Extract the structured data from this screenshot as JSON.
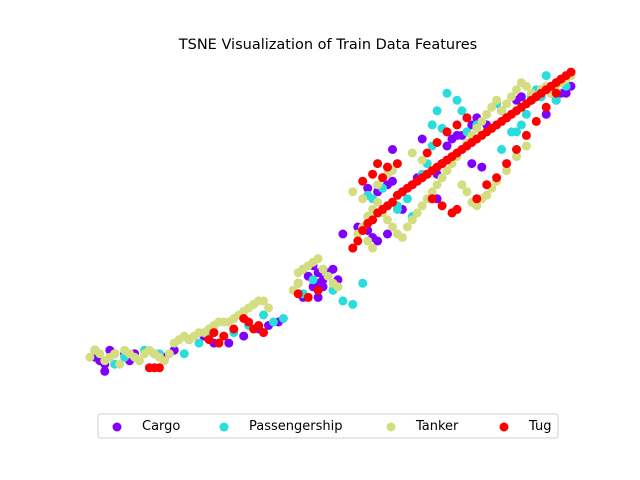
{
  "chart_data": {
    "type": "scatter",
    "title": "TSNE Visualization of Train Data Features",
    "xlabel": "",
    "ylabel": "",
    "axes_visible": false,
    "grid": false,
    "legend_placement": "bottom-center",
    "legend_columns": 4,
    "xlim": [
      0,
      100
    ],
    "ylim": [
      0,
      100
    ],
    "series": [
      {
        "name": "Cargo",
        "color": "#8000ff",
        "points": [
          [
            3,
            17
          ],
          [
            5,
            13
          ],
          [
            4,
            14
          ],
          [
            6,
            17
          ],
          [
            5,
            11
          ],
          [
            3,
            15
          ],
          [
            7,
            16
          ],
          [
            9,
            16
          ],
          [
            10,
            14
          ],
          [
            11,
            16
          ],
          [
            15,
            16
          ],
          [
            17,
            15
          ],
          [
            19,
            17
          ],
          [
            22,
            20
          ],
          [
            25,
            21
          ],
          [
            27,
            19
          ],
          [
            30,
            19
          ],
          [
            33,
            21
          ],
          [
            36,
            23
          ],
          [
            38,
            24
          ],
          [
            40,
            25
          ],
          [
            44,
            36
          ],
          [
            45,
            40
          ],
          [
            46,
            38
          ],
          [
            47,
            35
          ],
          [
            48,
            36
          ],
          [
            49,
            37
          ],
          [
            48,
            39
          ],
          [
            47,
            41
          ],
          [
            50,
            39
          ],
          [
            51,
            40
          ],
          [
            52,
            37
          ],
          [
            45,
            32
          ],
          [
            48,
            32
          ],
          [
            49,
            35
          ],
          [
            53,
            50
          ],
          [
            56,
            52
          ],
          [
            58,
            51
          ],
          [
            59,
            49
          ],
          [
            60,
            48
          ],
          [
            62,
            50
          ],
          [
            65,
            57
          ],
          [
            58,
            63
          ],
          [
            60,
            62
          ],
          [
            62,
            64
          ],
          [
            63,
            65
          ],
          [
            67,
            64
          ],
          [
            68,
            66
          ],
          [
            70,
            67
          ],
          [
            72,
            67
          ],
          [
            73,
            70
          ],
          [
            74,
            75
          ],
          [
            75,
            77
          ],
          [
            76,
            78
          ],
          [
            77,
            78
          ],
          [
            79,
            81
          ],
          [
            80,
            83
          ],
          [
            82,
            81
          ],
          [
            85,
            85
          ],
          [
            86,
            83
          ],
          [
            88,
            88
          ],
          [
            89,
            89
          ],
          [
            91,
            88
          ],
          [
            92,
            89
          ],
          [
            93,
            91
          ],
          [
            95,
            90
          ],
          [
            96,
            88
          ],
          [
            97,
            90
          ],
          [
            98,
            90
          ],
          [
            99,
            92
          ],
          [
            72,
            60
          ],
          [
            79,
            70
          ],
          [
            81,
            69
          ],
          [
            94,
            84
          ],
          [
            63,
            74
          ],
          [
            69,
            77
          ]
        ]
      },
      {
        "name": "Passengership",
        "color": "#2adddd",
        "points": [
          [
            7,
            13
          ],
          [
            9,
            15
          ],
          [
            13,
            17
          ],
          [
            16,
            16
          ],
          [
            21,
            16
          ],
          [
            24,
            19
          ],
          [
            26,
            21
          ],
          [
            31,
            22
          ],
          [
            34,
            24
          ],
          [
            37,
            27
          ],
          [
            39,
            25
          ],
          [
            41,
            26
          ],
          [
            45,
            33
          ],
          [
            47,
            37
          ],
          [
            49,
            40
          ],
          [
            51,
            34
          ],
          [
            53,
            31
          ],
          [
            55,
            30
          ],
          [
            57,
            36
          ],
          [
            58,
            61
          ],
          [
            59,
            60
          ],
          [
            61,
            63
          ],
          [
            64,
            57
          ],
          [
            66,
            60
          ],
          [
            67,
            55
          ],
          [
            69,
            67
          ],
          [
            70,
            70
          ],
          [
            71,
            81
          ],
          [
            72,
            85
          ],
          [
            74,
            90
          ],
          [
            76,
            88
          ],
          [
            77,
            85
          ],
          [
            78,
            79
          ],
          [
            80,
            81
          ],
          [
            84,
            87
          ],
          [
            85,
            74
          ],
          [
            87,
            79
          ],
          [
            89,
            81
          ],
          [
            90,
            84
          ],
          [
            91,
            89
          ],
          [
            92,
            91
          ],
          [
            93,
            89
          ],
          [
            94,
            95
          ],
          [
            95,
            92
          ],
          [
            96,
            88
          ],
          [
            98,
            92
          ],
          [
            64,
            58
          ],
          [
            71,
            75
          ],
          [
            73,
            80
          ],
          [
            88,
            79
          ]
        ]
      },
      {
        "name": "Tanker",
        "color": "#d4dd80",
        "points": [
          [
            2,
            15
          ],
          [
            3,
            17
          ],
          [
            4,
            16
          ],
          [
            5,
            14
          ],
          [
            6,
            15
          ],
          [
            7,
            16
          ],
          [
            8,
            13
          ],
          [
            9,
            17
          ],
          [
            10,
            16
          ],
          [
            11,
            15
          ],
          [
            12,
            14
          ],
          [
            13,
            16
          ],
          [
            14,
            17
          ],
          [
            15,
            16
          ],
          [
            16,
            15
          ],
          [
            17,
            14
          ],
          [
            18,
            16
          ],
          [
            19,
            19
          ],
          [
            20,
            20
          ],
          [
            21,
            21
          ],
          [
            22,
            20
          ],
          [
            23,
            21
          ],
          [
            24,
            22
          ],
          [
            25,
            22
          ],
          [
            26,
            23
          ],
          [
            27,
            24
          ],
          [
            28,
            25
          ],
          [
            29,
            25
          ],
          [
            30,
            25
          ],
          [
            31,
            26
          ],
          [
            32,
            27
          ],
          [
            33,
            28
          ],
          [
            34,
            29
          ],
          [
            35,
            30
          ],
          [
            36,
            31
          ],
          [
            37,
            31
          ],
          [
            38,
            29
          ],
          [
            44,
            39
          ],
          [
            45,
            40
          ],
          [
            46,
            41
          ],
          [
            47,
            42
          ],
          [
            48,
            43
          ],
          [
            49,
            40
          ],
          [
            50,
            38
          ],
          [
            51,
            36
          ],
          [
            52,
            35
          ],
          [
            43,
            34
          ],
          [
            44,
            36
          ],
          [
            55,
            46
          ],
          [
            56,
            50
          ],
          [
            57,
            52
          ],
          [
            58,
            55
          ],
          [
            59,
            57
          ],
          [
            60,
            59
          ],
          [
            61,
            56
          ],
          [
            62,
            54
          ],
          [
            63,
            52
          ],
          [
            64,
            50
          ],
          [
            65,
            49
          ],
          [
            66,
            52
          ],
          [
            67,
            54
          ],
          [
            68,
            56
          ],
          [
            69,
            58
          ],
          [
            70,
            60
          ],
          [
            71,
            62
          ],
          [
            72,
            64
          ],
          [
            73,
            66
          ],
          [
            74,
            68
          ],
          [
            75,
            70
          ],
          [
            76,
            72
          ],
          [
            77,
            74
          ],
          [
            78,
            76
          ],
          [
            79,
            78
          ],
          [
            80,
            80
          ],
          [
            81,
            82
          ],
          [
            82,
            84
          ],
          [
            83,
            86
          ],
          [
            84,
            88
          ],
          [
            85,
            85
          ],
          [
            86,
            87
          ],
          [
            87,
            89
          ],
          [
            88,
            91
          ],
          [
            89,
            93
          ],
          [
            90,
            92
          ],
          [
            91,
            90
          ],
          [
            92,
            89
          ],
          [
            93,
            91
          ],
          [
            94,
            92
          ],
          [
            95,
            90
          ],
          [
            96,
            91
          ],
          [
            97,
            93
          ],
          [
            98,
            94
          ],
          [
            99,
            95
          ],
          [
            55,
            62
          ],
          [
            57,
            60
          ],
          [
            60,
            64
          ],
          [
            62,
            67
          ],
          [
            63,
            68
          ],
          [
            67,
            73
          ],
          [
            69,
            71
          ],
          [
            58,
            48
          ],
          [
            59,
            46
          ],
          [
            77,
            64
          ],
          [
            78,
            62
          ],
          [
            79,
            59
          ],
          [
            80,
            58
          ],
          [
            81,
            60
          ],
          [
            82,
            61
          ],
          [
            83,
            63
          ],
          [
            84,
            65
          ],
          [
            86,
            68
          ],
          [
            88,
            72
          ],
          [
            90,
            75
          ]
        ]
      },
      {
        "name": "Tug",
        "color": "#ff0000",
        "points": [
          [
            14,
            12
          ],
          [
            15,
            12
          ],
          [
            16,
            12
          ],
          [
            26,
            20
          ],
          [
            27,
            22
          ],
          [
            28,
            19
          ],
          [
            29,
            21
          ],
          [
            31,
            23
          ],
          [
            33,
            26
          ],
          [
            34,
            25
          ],
          [
            35,
            23
          ],
          [
            36,
            24
          ],
          [
            37,
            22
          ],
          [
            44,
            33
          ],
          [
            46,
            32
          ],
          [
            48,
            34
          ],
          [
            55,
            46
          ],
          [
            56,
            48
          ],
          [
            57,
            51
          ],
          [
            58,
            53
          ],
          [
            59,
            54
          ],
          [
            60,
            56
          ],
          [
            61,
            57
          ],
          [
            62,
            58
          ],
          [
            63,
            59
          ],
          [
            64,
            61
          ],
          [
            65,
            62
          ],
          [
            66,
            63
          ],
          [
            67,
            64
          ],
          [
            68,
            65
          ],
          [
            69,
            66
          ],
          [
            70,
            67
          ],
          [
            71,
            68
          ],
          [
            72,
            69
          ],
          [
            73,
            70
          ],
          [
            74,
            71
          ],
          [
            75,
            72
          ],
          [
            76,
            73
          ],
          [
            77,
            74
          ],
          [
            78,
            75
          ],
          [
            79,
            76
          ],
          [
            80,
            77
          ],
          [
            81,
            78
          ],
          [
            82,
            79
          ],
          [
            83,
            80
          ],
          [
            84,
            81
          ],
          [
            85,
            82
          ],
          [
            86,
            83
          ],
          [
            87,
            84
          ],
          [
            88,
            85
          ],
          [
            89,
            86
          ],
          [
            90,
            87
          ],
          [
            91,
            88
          ],
          [
            92,
            89
          ],
          [
            93,
            90
          ],
          [
            94,
            91
          ],
          [
            95,
            92
          ],
          [
            96,
            93
          ],
          [
            97,
            94
          ],
          [
            98,
            95
          ],
          [
            99,
            96
          ],
          [
            61,
            66
          ],
          [
            62,
            69
          ],
          [
            64,
            70
          ],
          [
            71,
            60
          ],
          [
            73,
            58
          ],
          [
            75,
            56
          ],
          [
            76,
            57
          ],
          [
            80,
            60
          ],
          [
            82,
            64
          ],
          [
            84,
            66
          ],
          [
            86,
            70
          ],
          [
            88,
            74
          ],
          [
            90,
            78
          ],
          [
            92,
            82
          ],
          [
            94,
            86
          ],
          [
            96,
            90
          ],
          [
            57,
            65
          ],
          [
            59,
            67
          ],
          [
            60,
            70
          ],
          [
            70,
            73
          ],
          [
            72,
            76
          ],
          [
            74,
            79
          ],
          [
            76,
            81
          ],
          [
            78,
            83
          ]
        ]
      }
    ]
  }
}
